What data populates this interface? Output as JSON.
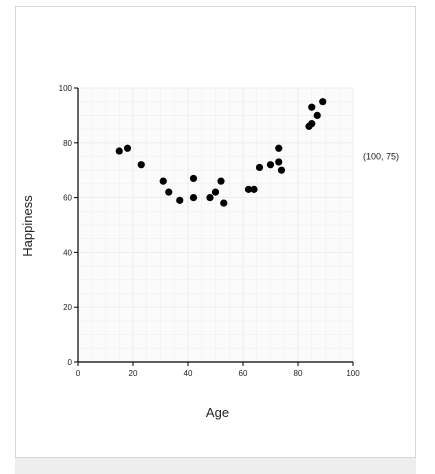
{
  "chart_data": {
    "type": "scatter",
    "xlabel": "Age",
    "ylabel": "Happiness",
    "xlim": [
      0,
      100
    ],
    "ylim": [
      0,
      100
    ],
    "xticks": [
      0,
      20,
      40,
      60,
      80,
      100
    ],
    "yticks": [
      0,
      20,
      40,
      60,
      80,
      100
    ],
    "grid": true,
    "point_color": "#000000",
    "grid_color": "#ececec",
    "annotation": {
      "text": "(100, 75)",
      "x": 100,
      "y": 75
    },
    "points": [
      {
        "x": 15,
        "y": 77
      },
      {
        "x": 18,
        "y": 78
      },
      {
        "x": 23,
        "y": 72
      },
      {
        "x": 31,
        "y": 66
      },
      {
        "x": 33,
        "y": 62
      },
      {
        "x": 37,
        "y": 59
      },
      {
        "x": 42,
        "y": 67
      },
      {
        "x": 42,
        "y": 60
      },
      {
        "x": 48,
        "y": 60
      },
      {
        "x": 50,
        "y": 62
      },
      {
        "x": 52,
        "y": 66
      },
      {
        "x": 53,
        "y": 58
      },
      {
        "x": 62,
        "y": 63
      },
      {
        "x": 64,
        "y": 63
      },
      {
        "x": 66,
        "y": 71
      },
      {
        "x": 70,
        "y": 72
      },
      {
        "x": 73,
        "y": 78
      },
      {
        "x": 73,
        "y": 73
      },
      {
        "x": 74,
        "y": 70
      },
      {
        "x": 84,
        "y": 86
      },
      {
        "x": 85,
        "y": 87
      },
      {
        "x": 85,
        "y": 93
      },
      {
        "x": 87,
        "y": 90
      },
      {
        "x": 89,
        "y": 95
      }
    ]
  }
}
